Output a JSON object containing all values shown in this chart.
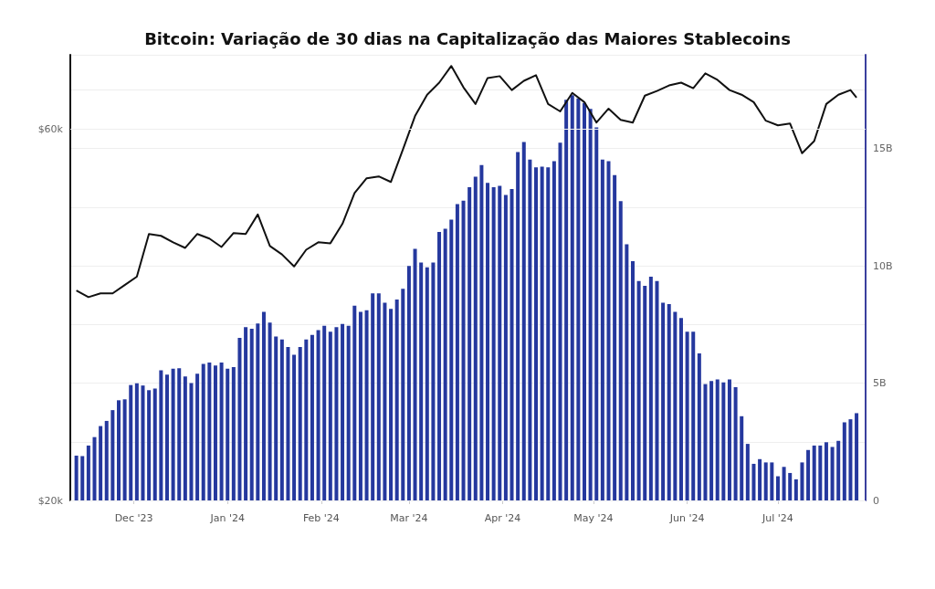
{
  "chart_data": {
    "type": "bar",
    "title": "Bitcoin: Variação de 30 dias na Capitalização das Maiores Stablecoins",
    "xlim": [
      "2023-11-10",
      "2024-07-30"
    ],
    "xticks": [
      {
        "value": "2023-12-01",
        "label": "Dec '23"
      },
      {
        "value": "2024-01-01",
        "label": "Jan '24"
      },
      {
        "value": "2024-02-01",
        "label": "Feb '24"
      },
      {
        "value": "2024-03-01",
        "label": "Mar '24"
      },
      {
        "value": "2024-04-01",
        "label": "Apr '24"
      },
      {
        "value": "2024-05-01",
        "label": "May '24"
      },
      {
        "value": "2024-06-01",
        "label": "Jun '24"
      },
      {
        "value": "2024-07-01",
        "label": "Jul '24"
      }
    ],
    "ylim": [
      20000,
      68000
    ],
    "yticks": [
      {
        "value": 20000,
        "label": "$20k"
      },
      {
        "value": 60000,
        "label": "$60k"
      }
    ],
    "y2lim": [
      0,
      19
    ],
    "y2ticks": [
      0,
      {
        "value": 2.5,
        "label": null
      },
      {
        "value": 5,
        "label": "5B"
      },
      {
        "value": 7.5,
        "label": null
      },
      {
        "value": 10,
        "label": "10B"
      },
      {
        "value": 12.5,
        "label": null
      },
      {
        "value": 15,
        "label": "15B"
      },
      {
        "value": 17.5,
        "label": null
      }
    ],
    "grid": "y",
    "marker": "none",
    "series": [
      {
        "axis": "y2",
        "color": "#25389e",
        "x": [
          "2023-11-12",
          "2023-11-14",
          "2023-11-16",
          "2023-11-18",
          "2023-11-20",
          "2023-11-22",
          "2023-11-24",
          "2023-11-26",
          "2023-11-28",
          "2023-11-30",
          "2023-12-02",
          "2023-12-04",
          "2023-12-06",
          "2023-12-08",
          "2023-12-10",
          "2023-12-12",
          "2023-12-14",
          "2023-12-16",
          "2023-12-18",
          "2023-12-20",
          "2023-12-22",
          "2023-12-24",
          "2023-12-26",
          "2023-12-28",
          "2023-12-30",
          "2024-01-01",
          "2024-01-03",
          "2024-01-05",
          "2024-01-07",
          "2024-01-09",
          "2024-01-11",
          "2024-01-13",
          "2024-01-15",
          "2024-01-17",
          "2024-01-19",
          "2024-01-21",
          "2024-01-23",
          "2024-01-25",
          "2024-01-27",
          "2024-01-29",
          "2024-01-31",
          "2024-02-02",
          "2024-02-04",
          "2024-02-06",
          "2024-02-08",
          "2024-02-10",
          "2024-02-12",
          "2024-02-14",
          "2024-02-16",
          "2024-02-18",
          "2024-02-20",
          "2024-02-22",
          "2024-02-24",
          "2024-02-26",
          "2024-02-28",
          "2024-03-01",
          "2024-03-03",
          "2024-03-05",
          "2024-03-07",
          "2024-03-09",
          "2024-03-11",
          "2024-03-13",
          "2024-03-15",
          "2024-03-17",
          "2024-03-19",
          "2024-03-21",
          "2024-03-23",
          "2024-03-25",
          "2024-03-27",
          "2024-03-29",
          "2024-03-31",
          "2024-04-02",
          "2024-04-04",
          "2024-04-06",
          "2024-04-08",
          "2024-04-10",
          "2024-04-12",
          "2024-04-14",
          "2024-04-16",
          "2024-04-18",
          "2024-04-20",
          "2024-04-22",
          "2024-04-24",
          "2024-04-26",
          "2024-04-28",
          "2024-04-30",
          "2024-05-02",
          "2024-05-04",
          "2024-05-06",
          "2024-05-08",
          "2024-05-10",
          "2024-05-12",
          "2024-05-14",
          "2024-05-16",
          "2024-05-18",
          "2024-05-20",
          "2024-05-22",
          "2024-05-24",
          "2024-05-26",
          "2024-05-28",
          "2024-05-30",
          "2024-06-01",
          "2024-06-03",
          "2024-06-05",
          "2024-06-07",
          "2024-06-09",
          "2024-06-11",
          "2024-06-13",
          "2024-06-15",
          "2024-06-17",
          "2024-06-19",
          "2024-06-21",
          "2024-06-23",
          "2024-06-25",
          "2024-06-27",
          "2024-06-29",
          "2024-07-01",
          "2024-07-03",
          "2024-07-05",
          "2024-07-07",
          "2024-07-09",
          "2024-07-11",
          "2024-07-13",
          "2024-07-15",
          "2024-07-17",
          "2024-07-19",
          "2024-07-21",
          "2024-07-23",
          "2024-07-25",
          "2024-07-27"
        ],
        "values": [
          1.91,
          1.89,
          2.34,
          2.7,
          3.17,
          3.39,
          3.85,
          4.27,
          4.31,
          4.92,
          4.99,
          4.9,
          4.7,
          4.77,
          5.55,
          5.36,
          5.62,
          5.64,
          5.29,
          5.0,
          5.4,
          5.82,
          5.88,
          5.75,
          5.88,
          5.62,
          5.68,
          6.93,
          7.39,
          7.32,
          7.54,
          8.04,
          7.58,
          6.99,
          6.86,
          6.54,
          6.21,
          6.54,
          6.86,
          7.06,
          7.26,
          7.45,
          7.19,
          7.39,
          7.52,
          7.45,
          8.3,
          8.04,
          8.11,
          8.83,
          8.83,
          8.43,
          8.17,
          8.57,
          9.02,
          10.0,
          10.73,
          10.14,
          9.94,
          10.14,
          11.45,
          11.58,
          11.97,
          12.63,
          12.78,
          13.35,
          13.8,
          14.3,
          13.54,
          13.35,
          13.41,
          13.02,
          13.28,
          14.85,
          15.28,
          14.53,
          14.2,
          14.23,
          14.2,
          14.46,
          15.25,
          17.08,
          17.28,
          17.14,
          16.95,
          16.69,
          15.9,
          14.53,
          14.46,
          13.87,
          12.76,
          10.92,
          10.2,
          9.35,
          9.15,
          9.54,
          9.35,
          8.43,
          8.37,
          8.04,
          7.78,
          7.19,
          7.19,
          6.27,
          4.96,
          5.09,
          5.16,
          5.03,
          5.16,
          4.83,
          3.59,
          2.41,
          1.56,
          1.76,
          1.62,
          1.62,
          1.03,
          1.43,
          1.17,
          0.9,
          1.62,
          2.15,
          2.34,
          2.34,
          2.48,
          2.28,
          2.54,
          3.33,
          3.46,
          3.72
        ]
      },
      {
        "type": "line",
        "axis": "y",
        "color": "#111111",
        "x": [
          "2023-11-12",
          "2023-11-16",
          "2023-11-20",
          "2023-11-24",
          "2023-11-28",
          "2023-12-02",
          "2023-12-06",
          "2023-12-10",
          "2023-12-14",
          "2023-12-18",
          "2023-12-22",
          "2023-12-26",
          "2023-12-30",
          "2024-01-03",
          "2024-01-07",
          "2024-01-11",
          "2024-01-15",
          "2024-01-19",
          "2024-01-23",
          "2024-01-27",
          "2024-01-31",
          "2024-02-04",
          "2024-02-08",
          "2024-02-12",
          "2024-02-16",
          "2024-02-20",
          "2024-02-24",
          "2024-02-28",
          "2024-03-03",
          "2024-03-07",
          "2024-03-11",
          "2024-03-15",
          "2024-03-19",
          "2024-03-23",
          "2024-03-27",
          "2024-03-31",
          "2024-04-04",
          "2024-04-08",
          "2024-04-12",
          "2024-04-16",
          "2024-04-20",
          "2024-04-24",
          "2024-04-28",
          "2024-05-02",
          "2024-05-06",
          "2024-05-10",
          "2024-05-14",
          "2024-05-18",
          "2024-05-22",
          "2024-05-26",
          "2024-05-30",
          "2024-06-03",
          "2024-06-07",
          "2024-06-11",
          "2024-06-15",
          "2024-06-19",
          "2024-06-23",
          "2024-06-27",
          "2024-07-01",
          "2024-07-05",
          "2024-07-09",
          "2024-07-13",
          "2024-07-17",
          "2024-07-21",
          "2024-07-25",
          "2024-07-27"
        ],
        "values": [
          42600,
          41900,
          42300,
          42300,
          43200,
          44100,
          48700,
          48500,
          47800,
          47200,
          48700,
          48200,
          47300,
          48800,
          48700,
          50800,
          47400,
          46500,
          45200,
          47000,
          47800,
          47700,
          49800,
          53100,
          54700,
          54900,
          54300,
          57800,
          61400,
          63700,
          65000,
          66800,
          64500,
          62700,
          65500,
          65700,
          64200,
          65200,
          65800,
          62700,
          61900,
          63900,
          62900,
          60700,
          62200,
          61000,
          60700,
          63600,
          64100,
          64700,
          65000,
          64400,
          66000,
          65300,
          64200,
          63700,
          62900,
          60900,
          60400,
          60600,
          57400,
          58700,
          62700,
          63700,
          64200,
          63400
        ]
      }
    ]
  }
}
